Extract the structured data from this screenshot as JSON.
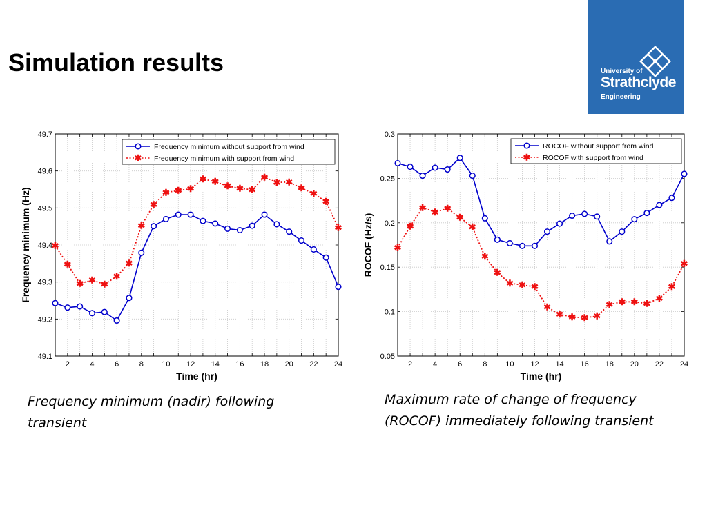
{
  "slide": {
    "title": "Simulation results"
  },
  "logo": {
    "line1": "University of",
    "line2": "Strathclyde",
    "line3": "Engineering",
    "background": "#2a6cb3"
  },
  "captions": {
    "left": "Frequency minimum (nadir) following transient",
    "right": "Maximum rate of change of frequency (ROCOF) immediately following transient"
  },
  "chart_data": [
    {
      "type": "line",
      "xlabel": "Time (hr)",
      "ylabel": "Frequency minimum (Hz)",
      "xlim": [
        1,
        24
      ],
      "ylim": [
        49.1,
        49.7
      ],
      "xticks": [
        2,
        4,
        6,
        8,
        10,
        12,
        14,
        16,
        18,
        20,
        22,
        24
      ],
      "yticks": [
        49.1,
        49.2,
        49.3,
        49.4,
        49.5,
        49.6,
        49.7
      ],
      "grid": true,
      "legend_position": "top-right",
      "x": [
        1,
        2,
        3,
        4,
        5,
        6,
        7,
        8,
        9,
        10,
        11,
        12,
        13,
        14,
        15,
        16,
        17,
        18,
        19,
        20,
        21,
        22,
        23,
        24
      ],
      "series": [
        {
          "name": "Frequency minimum without support from wind",
          "color": "#0000cc",
          "style": "solid",
          "marker": "circle",
          "values": [
            49.243,
            49.231,
            49.234,
            49.216,
            49.219,
            49.196,
            49.257,
            49.379,
            49.451,
            49.47,
            49.482,
            49.482,
            49.465,
            49.458,
            49.444,
            49.44,
            49.452,
            49.482,
            49.456,
            49.436,
            49.412,
            49.388,
            49.366,
            49.287
          ]
        },
        {
          "name": "Frequency minimum with support from wind",
          "color": "#ee1111",
          "style": "dotted",
          "marker": "star",
          "values": [
            49.398,
            49.348,
            49.296,
            49.305,
            49.294,
            49.315,
            49.351,
            49.452,
            49.509,
            49.542,
            49.547,
            49.552,
            49.578,
            49.571,
            49.559,
            49.553,
            49.549,
            49.583,
            49.569,
            49.57,
            49.554,
            49.539,
            49.517,
            49.447
          ]
        }
      ]
    },
    {
      "type": "line",
      "xlabel": "Time (hr)",
      "ylabel": "ROCOF (Hz/s)",
      "xlim": [
        1,
        24
      ],
      "ylim": [
        0.05,
        0.3
      ],
      "xticks": [
        2,
        4,
        6,
        8,
        10,
        12,
        14,
        16,
        18,
        20,
        22,
        24
      ],
      "yticks": [
        0.05,
        0.1,
        0.15,
        0.2,
        0.25,
        0.3
      ],
      "grid": true,
      "legend_position": "top-right",
      "x": [
        1,
        2,
        3,
        4,
        5,
        6,
        7,
        8,
        9,
        10,
        11,
        12,
        13,
        14,
        15,
        16,
        17,
        18,
        19,
        20,
        21,
        22,
        23,
        24
      ],
      "series": [
        {
          "name": "ROCOF without support from wind",
          "color": "#0000cc",
          "style": "solid",
          "marker": "circle",
          "values": [
            0.267,
            0.263,
            0.253,
            0.262,
            0.26,
            0.273,
            0.253,
            0.205,
            0.181,
            0.177,
            0.174,
            0.174,
            0.19,
            0.199,
            0.208,
            0.21,
            0.207,
            0.179,
            0.19,
            0.204,
            0.211,
            0.22,
            0.228,
            0.255
          ]
        },
        {
          "name": "ROCOF with support from wind",
          "color": "#ee1111",
          "style": "dotted",
          "marker": "star",
          "values": [
            0.172,
            0.196,
            0.217,
            0.212,
            0.216,
            0.206,
            0.195,
            0.162,
            0.144,
            0.132,
            0.13,
            0.128,
            0.105,
            0.097,
            0.094,
            0.093,
            0.095,
            0.108,
            0.111,
            0.111,
            0.109,
            0.115,
            0.128,
            0.154
          ]
        }
      ]
    }
  ]
}
